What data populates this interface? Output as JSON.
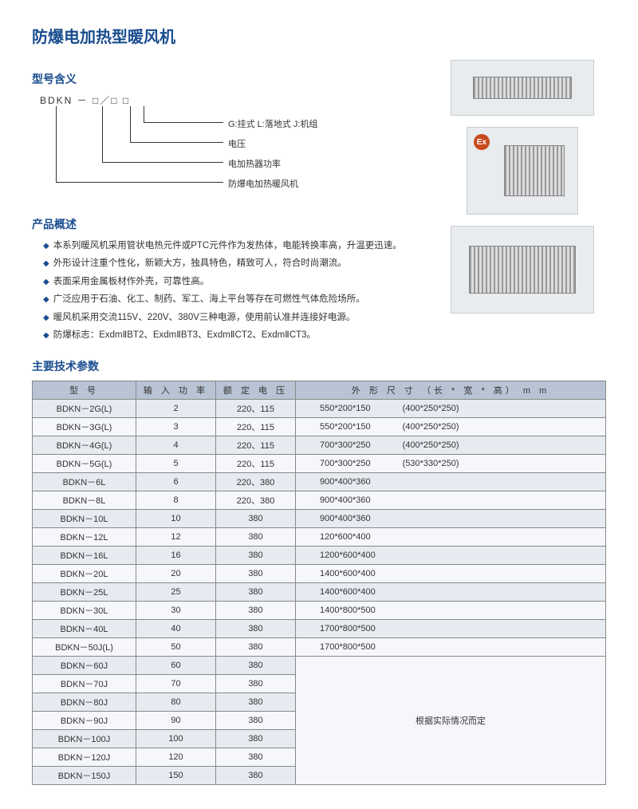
{
  "title": "防爆电加热型暖风机",
  "sections": {
    "model_meaning": "型号含义",
    "overview": "产品概述",
    "specs": "主要技术参数"
  },
  "model_diagram": {
    "prefix": "BDKN － □／□ □",
    "lines": [
      "G:挂式 L:落地式 J:机组",
      "电压",
      "电加热器功率",
      "防爆电加热暖风机"
    ]
  },
  "overview_items": [
    "本系列暖风机采用管状电热元件或PTC元件作为发热体，电能转换率高，升温更迅速。",
    "外形设计注重个性化，新颖大方，独具特色，精致可人，符合时尚潮流。",
    "表面采用金属板材作外壳，可靠性高。",
    "广泛应用于石油、化工、制药、军工、海上平台等存在可燃性气体危险场所。",
    "暖风机采用交流115V、220V、380V三种电源，使用前认准并连接好电源。",
    "防爆标志：ExdmⅡBT2、ExdmⅡBT3、ExdmⅡCT2、ExdmⅡCT3。"
  ],
  "table": {
    "columns": [
      "型 号",
      "输 入 功 率",
      "额 定 电 压",
      "外 形 尺 寸 （长 * 宽 * 高） m m"
    ],
    "rows": [
      {
        "model": "BDKN－2G(L)",
        "power": "2",
        "voltage": "220、115",
        "dim": "550*200*150",
        "alt": "(400*250*250)"
      },
      {
        "model": "BDKN－3G(L)",
        "power": "3",
        "voltage": "220、115",
        "dim": "550*200*150",
        "alt": "(400*250*250)"
      },
      {
        "model": "BDKN－4G(L)",
        "power": "4",
        "voltage": "220、115",
        "dim": "700*300*250",
        "alt": "(400*250*250)"
      },
      {
        "model": "BDKN－5G(L)",
        "power": "5",
        "voltage": "220、115",
        "dim": "700*300*250",
        "alt": "(530*330*250)"
      },
      {
        "model": "BDKN－6L",
        "power": "6",
        "voltage": "220、380",
        "dim": "900*400*360",
        "alt": ""
      },
      {
        "model": "BDKN－8L",
        "power": "8",
        "voltage": "220、380",
        "dim": "900*400*360",
        "alt": ""
      },
      {
        "model": "BDKN－10L",
        "power": "10",
        "voltage": "380",
        "dim": "900*400*360",
        "alt": ""
      },
      {
        "model": "BDKN－12L",
        "power": "12",
        "voltage": "380",
        "dim": "120*600*400",
        "alt": ""
      },
      {
        "model": "BDKN－16L",
        "power": "16",
        "voltage": "380",
        "dim": "1200*600*400",
        "alt": ""
      },
      {
        "model": "BDKN－20L",
        "power": "20",
        "voltage": "380",
        "dim": "1400*600*400",
        "alt": ""
      },
      {
        "model": "BDKN－25L",
        "power": "25",
        "voltage": "380",
        "dim": "1400*600*400",
        "alt": ""
      },
      {
        "model": "BDKN－30L",
        "power": "30",
        "voltage": "380",
        "dim": "1400*800*500",
        "alt": ""
      },
      {
        "model": "BDKN－40L",
        "power": "40",
        "voltage": "380",
        "dim": "1700*800*500",
        "alt": ""
      },
      {
        "model": "BDKN－50J(L)",
        "power": "50",
        "voltage": "380",
        "dim": "1700*800*500",
        "alt": ""
      },
      {
        "model": "BDKN－60J",
        "power": "60",
        "voltage": "380",
        "dim": "",
        "alt": ""
      },
      {
        "model": "BDKN－70J",
        "power": "70",
        "voltage": "380",
        "dim": "",
        "alt": ""
      },
      {
        "model": "BDKN－80J",
        "power": "80",
        "voltage": "380",
        "dim": "",
        "alt": ""
      },
      {
        "model": "BDKN－90J",
        "power": "90",
        "voltage": "380",
        "dim": "",
        "alt": ""
      },
      {
        "model": "BDKN－100J",
        "power": "100",
        "voltage": "380",
        "dim": "",
        "alt": ""
      },
      {
        "model": "BDKN－120J",
        "power": "120",
        "voltage": "380",
        "dim": "",
        "alt": ""
      },
      {
        "model": "BDKN－150J",
        "power": "150",
        "voltage": "380",
        "dim": "",
        "alt": ""
      }
    ],
    "merged_note": "根据实际情况而定",
    "merge_start_index": 14
  },
  "colors": {
    "heading": "#1a4d8f",
    "th_bg": "#b8c4d4",
    "row_odd": "#e6ebf1",
    "row_even": "#f5f7fa",
    "border": "#888"
  }
}
